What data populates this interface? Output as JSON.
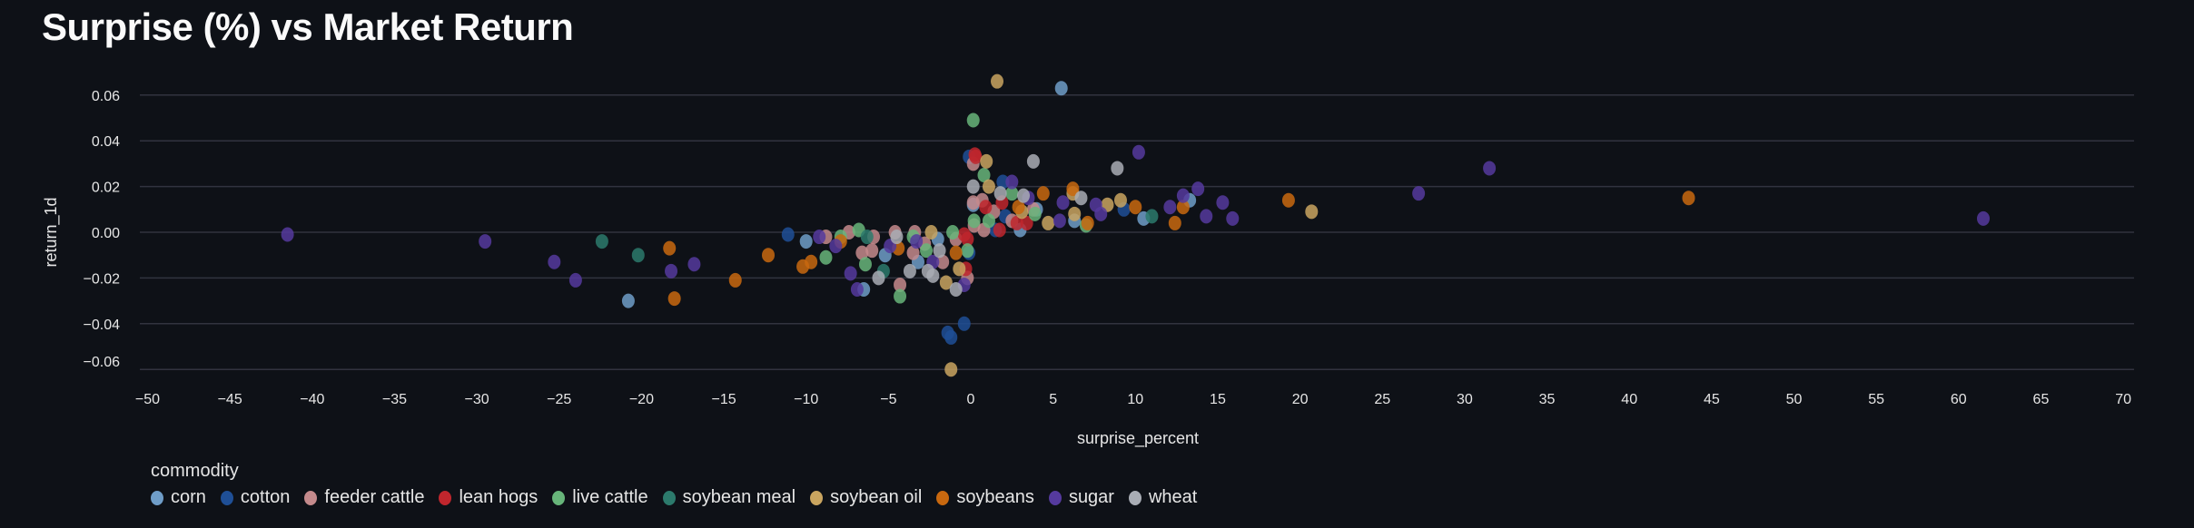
{
  "title": "Surprise (%) vs Market Return",
  "chart_data": {
    "type": "scatter",
    "title": "Surprise (%) vs Market Return",
    "xlabel": "surprise_percent",
    "ylabel": "return_1d",
    "xlim": [
      -50,
      70
    ],
    "ylim": [
      -0.06,
      0.06
    ],
    "grid": true,
    "legend_title": "commodity",
    "legend_position": "bottom-left",
    "x_ticks": [
      "−50",
      "−45",
      "−40",
      "−35",
      "−30",
      "−25",
      "−20",
      "−15",
      "−10",
      "−5",
      "0",
      "5",
      "10",
      "15",
      "20",
      "25",
      "30",
      "35",
      "40",
      "45",
      "50",
      "55",
      "60",
      "65",
      "70"
    ],
    "x_tick_values": [
      -50,
      -45,
      -40,
      -35,
      -30,
      -25,
      -20,
      -15,
      -10,
      -5,
      0,
      5,
      10,
      15,
      20,
      25,
      30,
      35,
      40,
      45,
      50,
      55,
      60,
      65,
      70
    ],
    "y_ticks": [
      "0.06",
      "0.04",
      "0.02",
      "0.00",
      "−0.02",
      "−0.04",
      "−0.06"
    ],
    "y_tick_values": [
      0.06,
      0.04,
      0.02,
      0.0,
      -0.02,
      -0.04,
      -0.06
    ],
    "series": [
      {
        "name": "corn",
        "color": "#6f9dc8",
        "points": [
          [
            -20.8,
            -0.03
          ],
          [
            5.5,
            0.063
          ],
          [
            10.5,
            0.006
          ],
          [
            13.3,
            0.014
          ],
          [
            6.3,
            0.005
          ],
          [
            -10.0,
            -0.004
          ],
          [
            -6.5,
            -0.025
          ],
          [
            -5.2,
            -0.01
          ],
          [
            -3.2,
            -0.013
          ],
          [
            -2.0,
            -0.003
          ],
          [
            0.15,
            0.012
          ],
          [
            3.0,
            0.001
          ],
          [
            4.0,
            0.01
          ]
        ]
      },
      {
        "name": "cotton",
        "color": "#1f4f96",
        "points": [
          [
            -11.1,
            -0.001
          ],
          [
            -0.4,
            -0.04
          ],
          [
            -1.4,
            -0.044
          ],
          [
            -1.2,
            -0.046
          ],
          [
            -0.1,
            0.033
          ],
          [
            1.95,
            0.022
          ],
          [
            9.3,
            0.01
          ],
          [
            -0.1,
            -0.009
          ],
          [
            2.1,
            0.007
          ],
          [
            1.5,
            0.001
          ]
        ]
      },
      {
        "name": "feeder cattle",
        "color": "#c48a8c",
        "points": [
          [
            -8.8,
            -0.002
          ],
          [
            -7.4,
            0.0
          ],
          [
            -6.6,
            -0.009
          ],
          [
            -6.0,
            -0.008
          ],
          [
            -5.9,
            -0.002
          ],
          [
            -4.6,
            0.0
          ],
          [
            -4.3,
            -0.023
          ],
          [
            -3.5,
            -0.009
          ],
          [
            -3.4,
            0.0
          ],
          [
            -2.8,
            -0.005
          ],
          [
            -1.7,
            -0.013
          ],
          [
            -0.2,
            -0.02
          ],
          [
            -0.9,
            -0.003
          ],
          [
            0.15,
            0.03
          ],
          [
            0.15,
            0.013
          ],
          [
            0.2,
            0.003
          ],
          [
            0.7,
            0.014
          ],
          [
            0.8,
            0.001
          ],
          [
            1.4,
            0.009
          ],
          [
            2.5,
            0.005
          ],
          [
            3.8,
            0.01
          ]
        ]
      },
      {
        "name": "lean hogs",
        "color": "#c0262d",
        "points": [
          [
            0.25,
            0.034
          ],
          [
            0.3,
            0.033
          ],
          [
            -0.3,
            -0.016
          ],
          [
            -0.4,
            -0.001
          ],
          [
            -0.2,
            -0.003
          ],
          [
            0.9,
            0.011
          ],
          [
            1.75,
            0.001
          ],
          [
            1.9,
            0.013
          ],
          [
            2.8,
            0.004
          ],
          [
            3.4,
            0.004
          ]
        ]
      },
      {
        "name": "live cattle",
        "color": "#67b57a",
        "points": [
          [
            0.15,
            0.049
          ],
          [
            0.8,
            0.025
          ],
          [
            -8.8,
            -0.011
          ],
          [
            -7.9,
            -0.002
          ],
          [
            -6.8,
            0.001
          ],
          [
            -6.4,
            -0.014
          ],
          [
            -4.3,
            -0.028
          ],
          [
            -3.5,
            -0.002
          ],
          [
            -2.7,
            -0.008
          ],
          [
            -0.2,
            -0.008
          ],
          [
            -1.1,
            0.0
          ],
          [
            0.2,
            0.005
          ],
          [
            1.1,
            0.005
          ],
          [
            2.5,
            0.017
          ],
          [
            3.9,
            0.008
          ],
          [
            7.0,
            0.003
          ]
        ]
      },
      {
        "name": "soybean meal",
        "color": "#2c7a6c",
        "points": [
          [
            -22.4,
            -0.004
          ],
          [
            -20.2,
            -0.01
          ],
          [
            -6.3,
            -0.002
          ],
          [
            -5.3,
            -0.017
          ],
          [
            11.0,
            0.007
          ]
        ]
      },
      {
        "name": "soybean oil",
        "color": "#c9a560",
        "points": [
          [
            1.6,
            0.066
          ],
          [
            0.95,
            0.031
          ],
          [
            1.1,
            0.02
          ],
          [
            6.2,
            0.017
          ],
          [
            8.3,
            0.012
          ],
          [
            9.1,
            0.014
          ],
          [
            20.7,
            0.009
          ],
          [
            6.3,
            0.008
          ],
          [
            4.7,
            0.004
          ],
          [
            -2.4,
            0.0
          ],
          [
            -1.5,
            -0.022
          ],
          [
            -0.7,
            -0.016
          ],
          [
            -1.2,
            -0.06
          ],
          [
            3.1,
            0.009
          ]
        ]
      },
      {
        "name": "soybeans",
        "color": "#c8680f",
        "points": [
          [
            -18.3,
            -0.007
          ],
          [
            -18.0,
            -0.029
          ],
          [
            -14.3,
            -0.021
          ],
          [
            -12.3,
            -0.01
          ],
          [
            -10.2,
            -0.015
          ],
          [
            -9.7,
            -0.013
          ],
          [
            -7.9,
            -0.004
          ],
          [
            -4.4,
            -0.007
          ],
          [
            -0.9,
            -0.009
          ],
          [
            4.4,
            0.017
          ],
          [
            6.2,
            0.019
          ],
          [
            10.0,
            0.011
          ],
          [
            12.9,
            0.011
          ],
          [
            12.4,
            0.004
          ],
          [
            19.3,
            0.014
          ],
          [
            7.1,
            0.004
          ],
          [
            2.9,
            0.011
          ],
          [
            43.6,
            0.015
          ]
        ]
      },
      {
        "name": "sugar",
        "color": "#553a9e",
        "points": [
          [
            -41.5,
            -0.001
          ],
          [
            -29.5,
            -0.004
          ],
          [
            -25.3,
            -0.013
          ],
          [
            -24.0,
            -0.021
          ],
          [
            -18.2,
            -0.017
          ],
          [
            -16.8,
            -0.014
          ],
          [
            10.2,
            0.035
          ],
          [
            2.5,
            0.022
          ],
          [
            5.6,
            0.013
          ],
          [
            7.6,
            0.012
          ],
          [
            7.9,
            0.008
          ],
          [
            12.1,
            0.011
          ],
          [
            12.9,
            0.016
          ],
          [
            13.8,
            0.019
          ],
          [
            14.3,
            0.007
          ],
          [
            15.3,
            0.013
          ],
          [
            15.9,
            0.006
          ],
          [
            5.4,
            0.005
          ],
          [
            3.5,
            0.015
          ],
          [
            -9.2,
            -0.002
          ],
          [
            -8.2,
            -0.006
          ],
          [
            -7.3,
            -0.018
          ],
          [
            -6.9,
            -0.025
          ],
          [
            -4.9,
            -0.006
          ],
          [
            -3.3,
            -0.004
          ],
          [
            -2.3,
            -0.013
          ],
          [
            -0.4,
            -0.023
          ],
          [
            27.2,
            0.017
          ],
          [
            31.5,
            0.028
          ],
          [
            61.5,
            0.006
          ]
        ]
      },
      {
        "name": "wheat",
        "color": "#a9adb5",
        "points": [
          [
            3.8,
            0.031
          ],
          [
            8.9,
            0.028
          ],
          [
            0.15,
            0.02
          ],
          [
            6.7,
            0.015
          ],
          [
            1.8,
            0.017
          ],
          [
            3.2,
            0.016
          ],
          [
            -5.6,
            -0.02
          ],
          [
            -4.5,
            -0.002
          ],
          [
            -3.7,
            -0.017
          ],
          [
            -2.6,
            -0.017
          ],
          [
            -2.3,
            -0.019
          ],
          [
            -1.9,
            -0.008
          ],
          [
            -0.9,
            -0.025
          ]
        ]
      }
    ]
  }
}
